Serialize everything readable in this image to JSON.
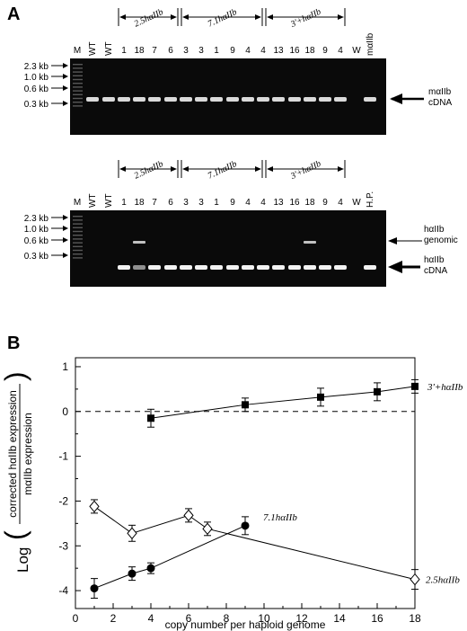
{
  "panelA": {
    "letter": "A",
    "top_gel": {
      "lanes": [
        "M",
        "WT",
        "WT",
        "1",
        "18",
        "7",
        "6",
        "3",
        "3",
        "1",
        "9",
        "4",
        "4",
        "13",
        "16",
        "18",
        "9",
        "4",
        "W",
        "mαIIb"
      ],
      "groups": [
        "2.5hαIIb",
        "7.1hαIIb",
        "3'+hαIIb"
      ],
      "sizes": [
        "2.3 kb",
        "1.0 kb",
        "0.6 kb",
        "0.3 kb"
      ],
      "band_label": [
        "mαIIb",
        "cDNA"
      ]
    },
    "bottom_gel": {
      "lanes": [
        "M",
        "WT",
        "WT",
        "1",
        "18",
        "7",
        "6",
        "3",
        "3",
        "1",
        "9",
        "4",
        "4",
        "13",
        "16",
        "18",
        "9",
        "4",
        "W",
        "H.P."
      ],
      "groups": [
        "2.5hαIIb",
        "7.1hαIIb",
        "3'+hαIIb"
      ],
      "sizes": [
        "2.3 kb",
        "1.0 kb",
        "0.6 kb",
        "0.3 kb"
      ],
      "genomic_label": [
        "hαIIb",
        "genomic"
      ],
      "cdna_label": [
        "hαIIb",
        "cDNA"
      ]
    }
  },
  "panelB": {
    "letter": "B",
    "ylabel_prefix": "Log",
    "ylabel_num": "corrected hαIIb expression",
    "ylabel_den": "mαIIb expression"
  },
  "chart_data": {
    "type": "line",
    "xlabel": "copy number per haploid genome",
    "xlim": [
      0,
      18
    ],
    "ylim": [
      -4.4,
      1.2
    ],
    "xticks": [
      0,
      2,
      4,
      6,
      8,
      10,
      12,
      14,
      16,
      18
    ],
    "yticks": [
      1,
      0,
      -1,
      -2,
      -3,
      -4
    ],
    "reference_line_y": 0,
    "series": [
      {
        "name": "3'+hαIIb",
        "marker": "square",
        "x": [
          4,
          9,
          13,
          16,
          18
        ],
        "y": [
          -0.15,
          0.15,
          0.32,
          0.44,
          0.56
        ],
        "err": [
          0.2,
          0.15,
          0.2,
          0.2,
          0.15
        ]
      },
      {
        "name": "7.1hαIIb",
        "marker": "circle",
        "x": [
          1,
          3,
          4,
          9
        ],
        "y": [
          -3.95,
          -3.62,
          -3.5,
          -2.55
        ],
        "err": [
          0.22,
          0.15,
          0.12,
          0.2
        ]
      },
      {
        "name": "2.5hαIIb",
        "marker": "diamond",
        "x": [
          1,
          3,
          6,
          7,
          18
        ],
        "y": [
          -2.12,
          -2.72,
          -2.32,
          -2.62,
          -3.75
        ],
        "err": [
          0.15,
          0.18,
          0.15,
          0.15,
          0.22
        ]
      }
    ]
  }
}
